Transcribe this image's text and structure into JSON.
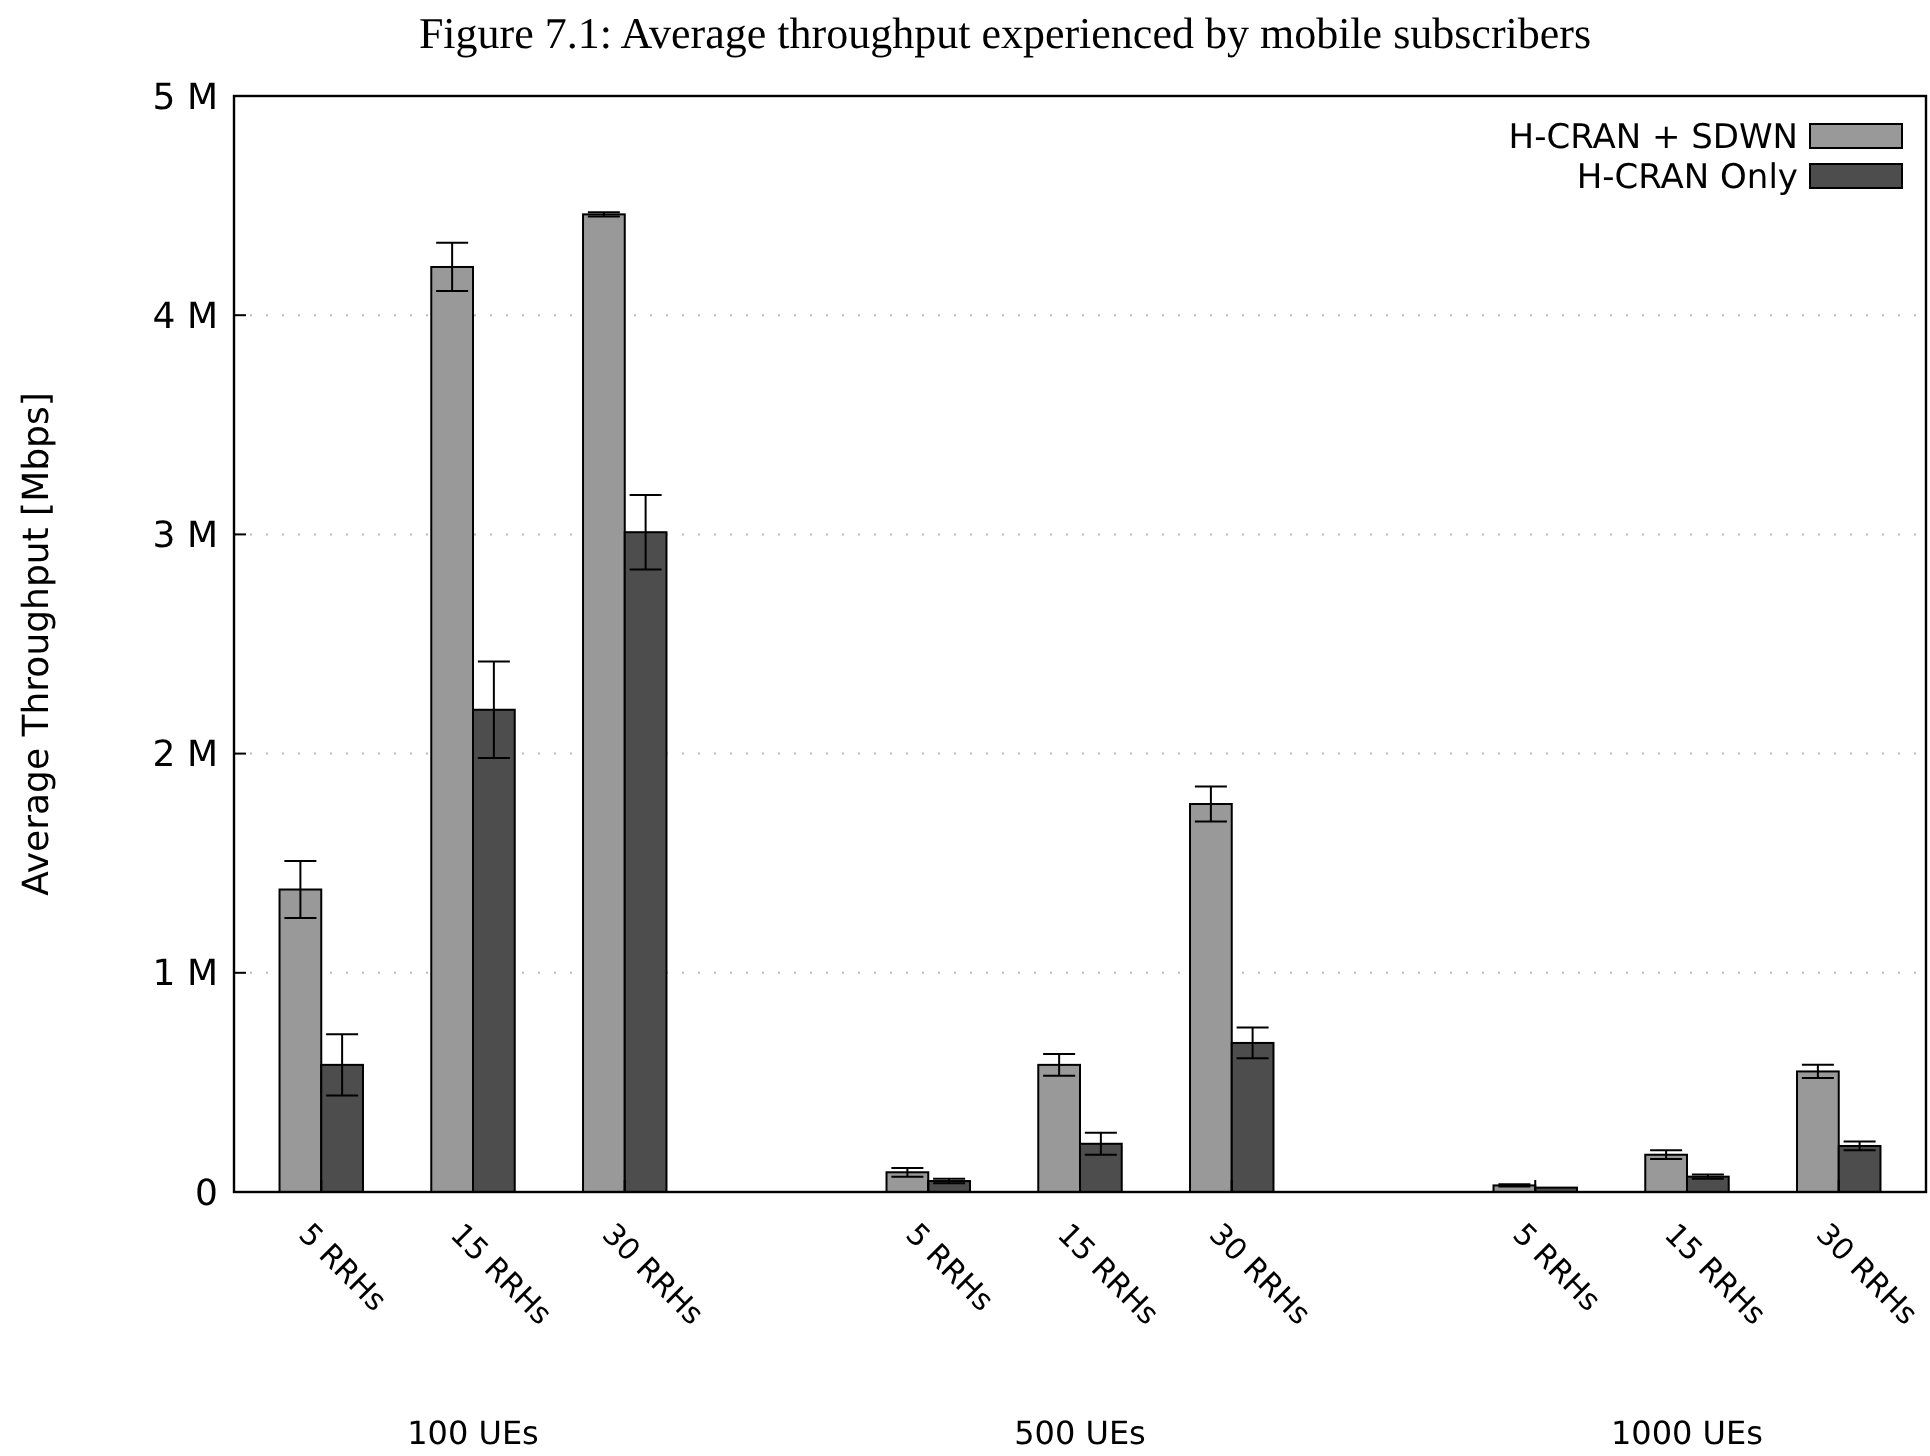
{
  "chart_data": {
    "type": "bar",
    "title": "Figure 7.1: Average throughput experienced by mobile subscribers",
    "ylabel": "Average Throughput [Mbps]",
    "categories": [
      "5 RRHs",
      "15 RRHs",
      "30 RRHs",
      null,
      "5 RRHs",
      "15 RRHs",
      "30 RRHs",
      null,
      "5 RRHs",
      "15 RRHs",
      "30 RRHs"
    ],
    "annotations": [
      "100 UEs",
      "500 UEs",
      "1000 UEs"
    ],
    "series": [
      {
        "name": "H-CRAN + SDWN",
        "color": "#999999",
        "values": [
          1.38,
          4.22,
          4.46,
          null,
          0.09,
          0.58,
          1.77,
          null,
          0.03,
          0.17,
          0.55
        ],
        "errors": [
          0.13,
          0.11,
          0.01,
          null,
          0.02,
          0.05,
          0.08,
          null,
          0.005,
          0.02,
          0.03
        ]
      },
      {
        "name": "H-CRAN Only",
        "color": "#4d4d4d",
        "values": [
          0.58,
          2.2,
          3.01,
          null,
          0.05,
          0.22,
          0.68,
          null,
          0.02,
          0.07,
          0.21
        ],
        "errors": [
          0.14,
          0.22,
          0.17,
          null,
          0.01,
          0.05,
          0.07,
          null,
          null,
          0.01,
          0.02
        ]
      }
    ],
    "ylim": [
      0,
      5
    ],
    "yticks": [
      0,
      {
        "value": 1,
        "label": "1 M"
      },
      {
        "value": 2,
        "label": "2 M"
      },
      {
        "value": 3,
        "label": "3 M"
      },
      {
        "value": 4,
        "label": "4 M"
      },
      {
        "value": 5,
        "label": "5 M"
      }
    ],
    "grid": "y",
    "legend": "top right"
  }
}
